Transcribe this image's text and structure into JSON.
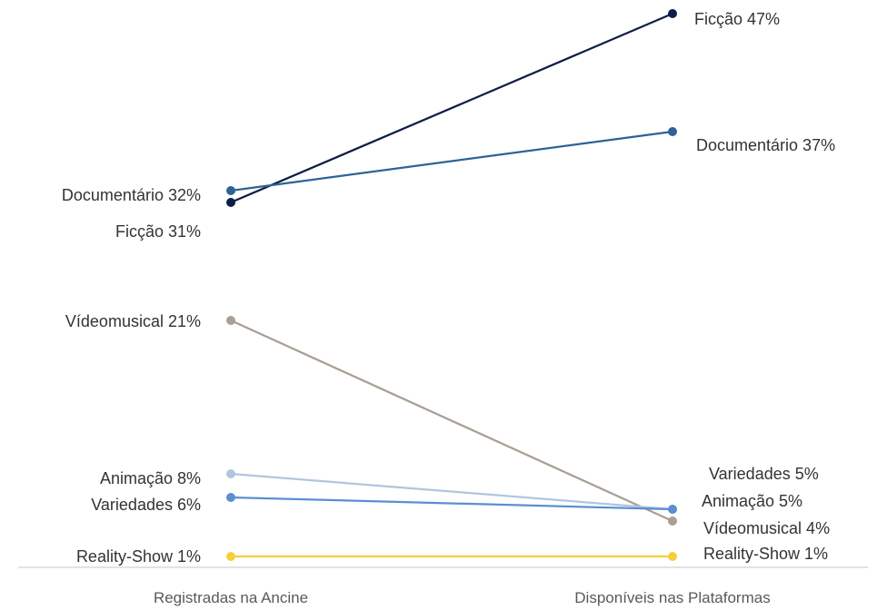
{
  "chart_data": {
    "type": "line",
    "categories": [
      "Registradas na Ancine",
      "Disponíveis nas Plataformas"
    ],
    "series": [
      {
        "name": "Ficção",
        "values": [
          31,
          47
        ],
        "color": "#0d1f45",
        "labels": [
          "Ficção 31%",
          "Ficção 47%"
        ]
      },
      {
        "name": "Documentário",
        "values": [
          32,
          37
        ],
        "color": "#2e6296",
        "labels": [
          "Documentário 32%",
          "Documentário 37%"
        ]
      },
      {
        "name": "Vídeomusical",
        "values": [
          21,
          4
        ],
        "color": "#a99f93",
        "labels": [
          "Vídeomusical 21%",
          "Vídeomusical 4%"
        ]
      },
      {
        "name": "Animação",
        "values": [
          8,
          5
        ],
        "color": "#b0c6e0",
        "labels": [
          "Animação 8%",
          "Animação 5%"
        ]
      },
      {
        "name": "Variedades",
        "values": [
          6,
          5
        ],
        "color": "#5b8fd0",
        "labels": [
          "Variedades 6%",
          "Variedades 5%"
        ]
      },
      {
        "name": "Reality-Show",
        "values": [
          1,
          1
        ],
        "color": "#f5cf3a",
        "labels": [
          "Reality-Show 1%",
          "Reality-Show 1%"
        ]
      }
    ],
    "ylim": [
      0,
      48
    ],
    "grid": false,
    "legend": "none"
  }
}
